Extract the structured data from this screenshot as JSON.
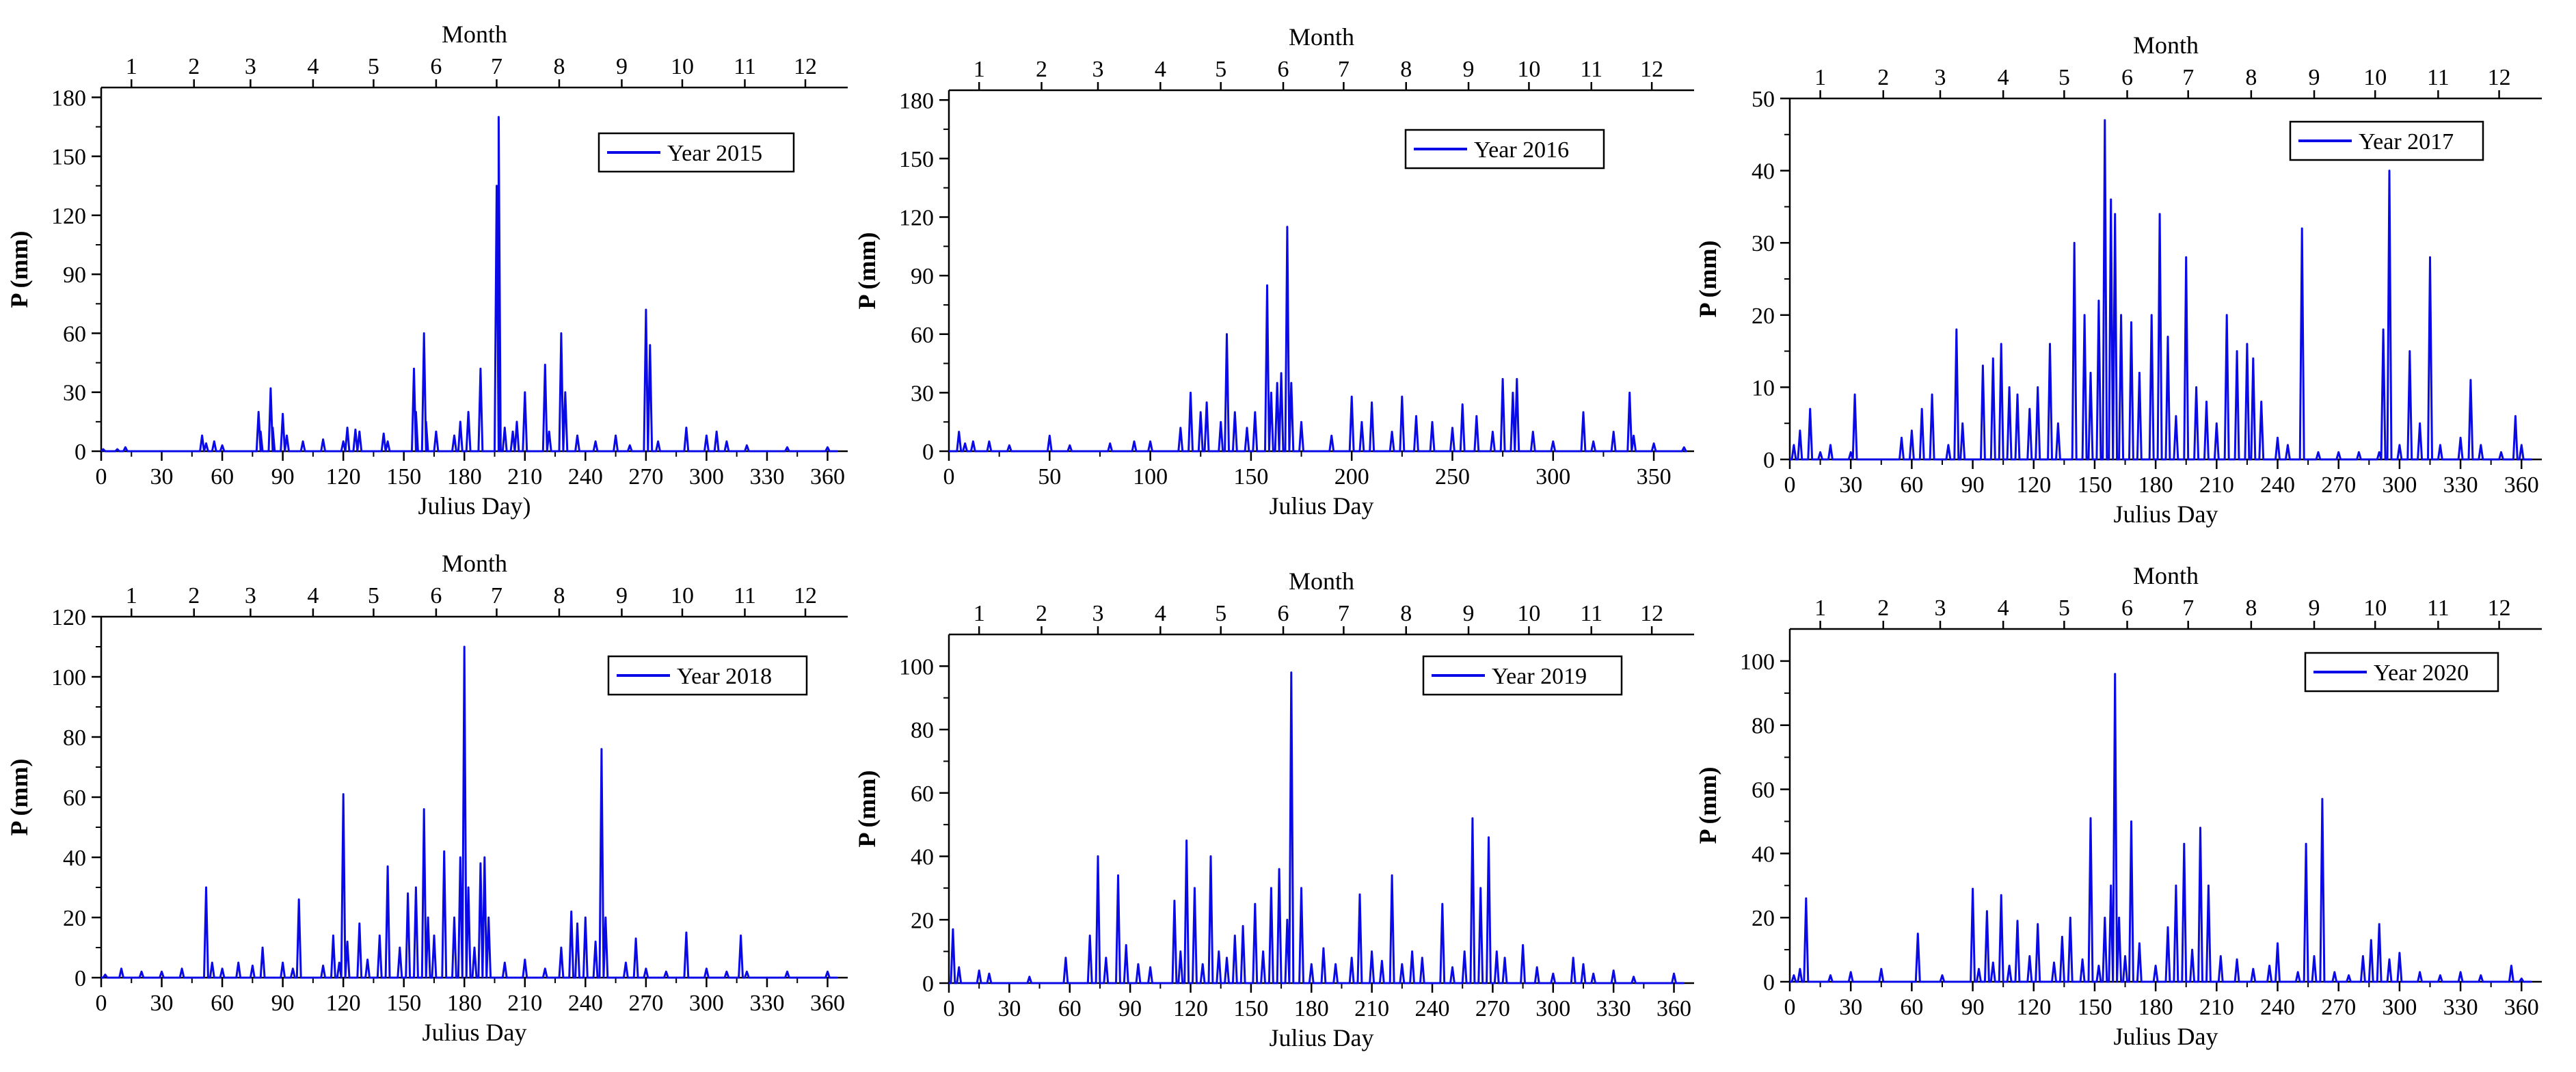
{
  "figure_title": "",
  "chart_data": [
    {
      "type": "line",
      "legend": "Year 2015",
      "title": "",
      "xlabel": "Julius Day)",
      "ylabel": "P (mm)",
      "top_axis_label": "Month",
      "top_ticks": [
        1,
        2,
        3,
        4,
        5,
        6,
        7,
        8,
        9,
        10,
        11,
        12
      ],
      "xlim": [
        0,
        370
      ],
      "xticks": [
        0,
        30,
        60,
        90,
        120,
        150,
        180,
        210,
        240,
        270,
        300,
        330,
        360
      ],
      "ylim": [
        0,
        185
      ],
      "yticks": [
        0,
        30,
        60,
        90,
        120,
        150,
        180
      ],
      "series": [
        {
          "name": "Year 2015",
          "x": [
            1,
            8,
            12,
            50,
            52,
            56,
            60,
            78,
            79,
            84,
            85,
            90,
            92,
            100,
            110,
            120,
            122,
            126,
            128,
            140,
            142,
            155,
            156,
            160,
            161,
            166,
            175,
            178,
            182,
            188,
            196,
            197,
            200,
            204,
            206,
            210,
            220,
            222,
            228,
            230,
            236,
            245,
            255,
            262,
            270,
            272,
            276,
            290,
            300,
            305,
            310,
            320,
            340,
            360
          ],
          "y": [
            1,
            1,
            2,
            8,
            4,
            5,
            3,
            20,
            10,
            32,
            12,
            19,
            8,
            5,
            6,
            5,
            12,
            11,
            10,
            9,
            5,
            42,
            20,
            60,
            15,
            10,
            8,
            15,
            20,
            42,
            135,
            170,
            12,
            10,
            15,
            30,
            44,
            10,
            60,
            30,
            8,
            5,
            8,
            3,
            72,
            54,
            5,
            12,
            8,
            10,
            5,
            3,
            2,
            2
          ]
        }
      ],
      "legend_position": "top-right"
    },
    {
      "type": "line",
      "legend": "Year 2016",
      "title": "",
      "xlabel": "Julius Day",
      "ylabel": "P (mm)",
      "top_axis_label": "Month",
      "top_ticks": [
        1,
        2,
        3,
        4,
        5,
        6,
        7,
        8,
        9,
        10,
        11,
        12
      ],
      "xlim": [
        0,
        370
      ],
      "xticks": [
        0,
        50,
        100,
        150,
        200,
        250,
        300,
        350
      ],
      "ylim": [
        0,
        185
      ],
      "yticks": [
        0,
        30,
        60,
        90,
        120,
        150,
        180
      ],
      "series": [
        {
          "name": "Year 2016",
          "x": [
            5,
            8,
            12,
            20,
            30,
            50,
            60,
            80,
            92,
            100,
            115,
            120,
            125,
            128,
            135,
            138,
            142,
            148,
            152,
            158,
            160,
            163,
            165,
            168,
            170,
            175,
            190,
            200,
            205,
            210,
            220,
            225,
            232,
            240,
            250,
            255,
            262,
            270,
            275,
            280,
            282,
            290,
            300,
            315,
            320,
            330,
            338,
            340,
            350,
            365
          ],
          "y": [
            10,
            4,
            5,
            5,
            3,
            8,
            3,
            4,
            5,
            5,
            12,
            30,
            20,
            25,
            15,
            60,
            20,
            12,
            20,
            85,
            30,
            35,
            40,
            115,
            35,
            15,
            8,
            28,
            15,
            25,
            10,
            28,
            18,
            15,
            12,
            24,
            18,
            10,
            37,
            30,
            37,
            10,
            5,
            20,
            5,
            10,
            30,
            8,
            4,
            2
          ]
        }
      ],
      "legend_position": "top-right"
    },
    {
      "type": "line",
      "legend": "Year 2017",
      "title": "",
      "xlabel": "Julius Day",
      "ylabel": "P (mm)",
      "top_axis_label": "Month",
      "top_ticks": [
        1,
        2,
        3,
        4,
        5,
        6,
        7,
        8,
        9,
        10,
        11,
        12
      ],
      "xlim": [
        0,
        370
      ],
      "xticks": [
        0,
        30,
        60,
        90,
        120,
        150,
        180,
        210,
        240,
        270,
        300,
        330,
        360
      ],
      "ylim": [
        0,
        50
      ],
      "yticks": [
        0,
        10,
        20,
        30,
        40,
        50
      ],
      "series": [
        {
          "name": "Year 2017",
          "x": [
            2,
            5,
            10,
            15,
            20,
            30,
            32,
            55,
            60,
            65,
            70,
            78,
            82,
            85,
            95,
            100,
            104,
            108,
            112,
            118,
            122,
            128,
            132,
            140,
            145,
            148,
            152,
            155,
            158,
            160,
            163,
            168,
            172,
            178,
            182,
            186,
            190,
            195,
            200,
            205,
            210,
            215,
            220,
            225,
            228,
            232,
            240,
            245,
            252,
            260,
            270,
            280,
            290,
            292,
            295,
            300,
            305,
            310,
            315,
            320,
            330,
            335,
            340,
            350,
            357,
            360
          ],
          "y": [
            2,
            4,
            7,
            1,
            2,
            1,
            9,
            3,
            4,
            7,
            9,
            2,
            18,
            5,
            13,
            14,
            16,
            10,
            9,
            7,
            10,
            16,
            5,
            30,
            20,
            12,
            22,
            47,
            36,
            34,
            20,
            19,
            12,
            20,
            34,
            17,
            6,
            28,
            10,
            8,
            5,
            20,
            15,
            16,
            14,
            8,
            3,
            2,
            32,
            1,
            1,
            1,
            1,
            18,
            40,
            2,
            15,
            5,
            28,
            2,
            3,
            11,
            2,
            1,
            6,
            2
          ]
        }
      ],
      "legend_position": "top-right"
    },
    {
      "type": "line",
      "legend": "Year 2018",
      "title": "",
      "xlabel": "Julius Day",
      "ylabel": "P (mm)",
      "top_axis_label": "Month",
      "top_ticks": [
        1,
        2,
        3,
        4,
        5,
        6,
        7,
        8,
        9,
        10,
        11,
        12
      ],
      "xlim": [
        0,
        370
      ],
      "xticks": [
        0,
        30,
        60,
        90,
        120,
        150,
        180,
        210,
        240,
        270,
        300,
        330,
        360
      ],
      "ylim": [
        0,
        120
      ],
      "yticks": [
        0,
        20,
        40,
        60,
        80,
        100,
        120
      ],
      "series": [
        {
          "name": "Year 2018",
          "x": [
            2,
            10,
            20,
            30,
            40,
            52,
            55,
            60,
            68,
            75,
            80,
            90,
            95,
            98,
            110,
            115,
            118,
            120,
            122,
            128,
            132,
            138,
            142,
            148,
            152,
            156,
            160,
            162,
            165,
            170,
            175,
            178,
            180,
            182,
            185,
            188,
            190,
            192,
            200,
            210,
            220,
            228,
            233,
            236,
            240,
            245,
            248,
            250,
            260,
            265,
            270,
            280,
            290,
            300,
            310,
            317,
            320,
            340,
            360
          ],
          "y": [
            1,
            3,
            2,
            2,
            3,
            30,
            5,
            3,
            5,
            4,
            10,
            5,
            3,
            26,
            4,
            14,
            5,
            61,
            12,
            18,
            6,
            14,
            37,
            10,
            28,
            30,
            56,
            20,
            14,
            42,
            20,
            40,
            110,
            30,
            10,
            38,
            40,
            20,
            5,
            6,
            3,
            10,
            22,
            18,
            20,
            12,
            76,
            20,
            5,
            13,
            3,
            2,
            15,
            3,
            2,
            14,
            2,
            2,
            2
          ]
        }
      ],
      "legend_position": "top-right"
    },
    {
      "type": "line",
      "legend": "Year 2019",
      "title": "",
      "xlabel": "Julius Day",
      "ylabel": "P (mm)",
      "top_axis_label": "Month",
      "top_ticks": [
        1,
        2,
        3,
        4,
        5,
        6,
        7,
        8,
        9,
        10,
        11,
        12
      ],
      "xlim": [
        0,
        370
      ],
      "xticks": [
        0,
        30,
        60,
        90,
        120,
        150,
        180,
        210,
        240,
        270,
        300,
        330,
        360
      ],
      "ylim": [
        0,
        110
      ],
      "yticks": [
        0,
        20,
        40,
        60,
        80,
        100
      ],
      "series": [
        {
          "name": "Year 2019",
          "x": [
            2,
            5,
            15,
            20,
            40,
            58,
            70,
            74,
            78,
            84,
            88,
            94,
            100,
            112,
            115,
            118,
            122,
            126,
            130,
            134,
            138,
            142,
            146,
            152,
            156,
            160,
            164,
            168,
            170,
            175,
            180,
            186,
            192,
            200,
            204,
            210,
            215,
            220,
            225,
            230,
            235,
            245,
            250,
            256,
            260,
            264,
            268,
            272,
            276,
            285,
            292,
            300,
            310,
            315,
            320,
            330,
            340,
            360
          ],
          "y": [
            17,
            5,
            4,
            3,
            2,
            8,
            15,
            40,
            8,
            34,
            12,
            6,
            5,
            26,
            10,
            45,
            30,
            6,
            40,
            10,
            8,
            15,
            18,
            25,
            10,
            30,
            36,
            20,
            98,
            30,
            6,
            11,
            6,
            8,
            28,
            10,
            7,
            34,
            6,
            10,
            8,
            25,
            5,
            10,
            52,
            30,
            46,
            10,
            8,
            12,
            5,
            3,
            8,
            6,
            3,
            4,
            2,
            3
          ]
        }
      ],
      "legend_position": "top-right"
    },
    {
      "type": "line",
      "legend": "Year 2020",
      "title": "",
      "xlabel": "Julius Day",
      "ylabel": "P (mm)",
      "top_axis_label": "Month",
      "top_ticks": [
        1,
        2,
        3,
        4,
        5,
        6,
        7,
        8,
        9,
        10,
        11,
        12
      ],
      "xlim": [
        0,
        370
      ],
      "xticks": [
        0,
        30,
        60,
        90,
        120,
        150,
        180,
        210,
        240,
        270,
        300,
        330,
        360
      ],
      "ylim": [
        0,
        110
      ],
      "yticks": [
        0,
        20,
        40,
        60,
        80,
        100
      ],
      "series": [
        {
          "name": "Year 2020",
          "x": [
            2,
            5,
            8,
            20,
            30,
            45,
            63,
            75,
            90,
            93,
            97,
            100,
            104,
            108,
            112,
            118,
            122,
            130,
            134,
            138,
            144,
            148,
            152,
            155,
            158,
            160,
            162,
            165,
            168,
            172,
            180,
            186,
            190,
            194,
            198,
            202,
            206,
            212,
            220,
            228,
            236,
            240,
            250,
            254,
            258,
            262,
            268,
            275,
            282,
            286,
            290,
            295,
            300,
            310,
            320,
            330,
            340,
            355,
            360
          ],
          "y": [
            2,
            4,
            26,
            2,
            3,
            4,
            15,
            2,
            29,
            4,
            22,
            6,
            27,
            5,
            19,
            8,
            18,
            6,
            14,
            20,
            7,
            51,
            5,
            20,
            30,
            96,
            20,
            8,
            50,
            12,
            5,
            17,
            30,
            43,
            10,
            48,
            30,
            8,
            7,
            4,
            5,
            12,
            3,
            43,
            8,
            57,
            3,
            2,
            8,
            13,
            18,
            7,
            9,
            3,
            2,
            3,
            2,
            5,
            1
          ]
        }
      ],
      "legend_position": "top-right"
    }
  ]
}
